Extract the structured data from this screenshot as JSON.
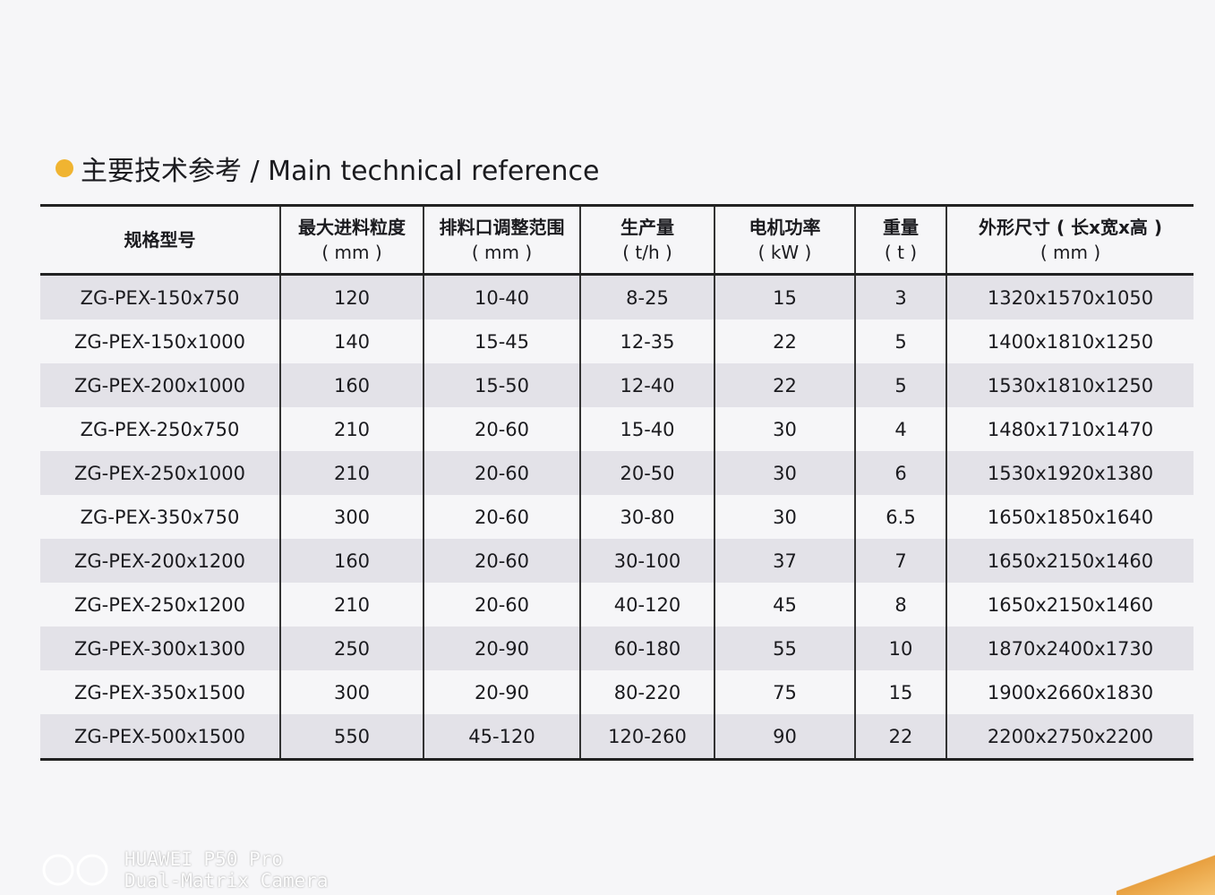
{
  "header": {
    "title": "主要技术参考 / Main technical reference"
  },
  "table": {
    "columns": [
      {
        "name": "规格型号"
      },
      {
        "name": "最大进料粒度",
        "unit": "( mm )"
      },
      {
        "name": "排料口调整范围",
        "unit": "( mm )"
      },
      {
        "name": "生产量",
        "unit": "( t/h )"
      },
      {
        "name": "电机功率",
        "unit": "( kW )"
      },
      {
        "name": "重量",
        "unit": "( t )"
      },
      {
        "name": "外形尺寸 ( 长x宽x高 )",
        "unit": "( mm )"
      }
    ],
    "rows": [
      [
        "ZG-PEX-150x750",
        "120",
        "10-40",
        "8-25",
        "15",
        "3",
        "1320x1570x1050"
      ],
      [
        "ZG-PEX-150x1000",
        "140",
        "15-45",
        "12-35",
        "22",
        "5",
        "1400x1810x1250"
      ],
      [
        "ZG-PEX-200x1000",
        "160",
        "15-50",
        "12-40",
        "22",
        "5",
        "1530x1810x1250"
      ],
      [
        "ZG-PEX-250x750",
        "210",
        "20-60",
        "15-40",
        "30",
        "4",
        "1480x1710x1470"
      ],
      [
        "ZG-PEX-250x1000",
        "210",
        "20-60",
        "20-50",
        "30",
        "6",
        "1530x1920x1380"
      ],
      [
        "ZG-PEX-350x750",
        "300",
        "20-60",
        "30-80",
        "30",
        "6.5",
        "1650x1850x1640"
      ],
      [
        "ZG-PEX-200x1200",
        "160",
        "20-60",
        "30-100",
        "37",
        "7",
        "1650x2150x1460"
      ],
      [
        "ZG-PEX-250x1200",
        "210",
        "20-60",
        "40-120",
        "45",
        "8",
        "1650x2150x1460"
      ],
      [
        "ZG-PEX-300x1300",
        "250",
        "20-90",
        "60-180",
        "55",
        "10",
        "1870x2400x1730"
      ],
      [
        "ZG-PEX-350x1500",
        "300",
        "20-90",
        "80-220",
        "75",
        "15",
        "1900x2660x1830"
      ],
      [
        "ZG-PEX-500x1500",
        "550",
        "45-120",
        "120-260",
        "90",
        "22",
        "2200x2750x2200"
      ]
    ]
  },
  "watermark": {
    "line1": "HUAWEI P50 Pro",
    "line2": "Dual-Matrix Camera"
  }
}
